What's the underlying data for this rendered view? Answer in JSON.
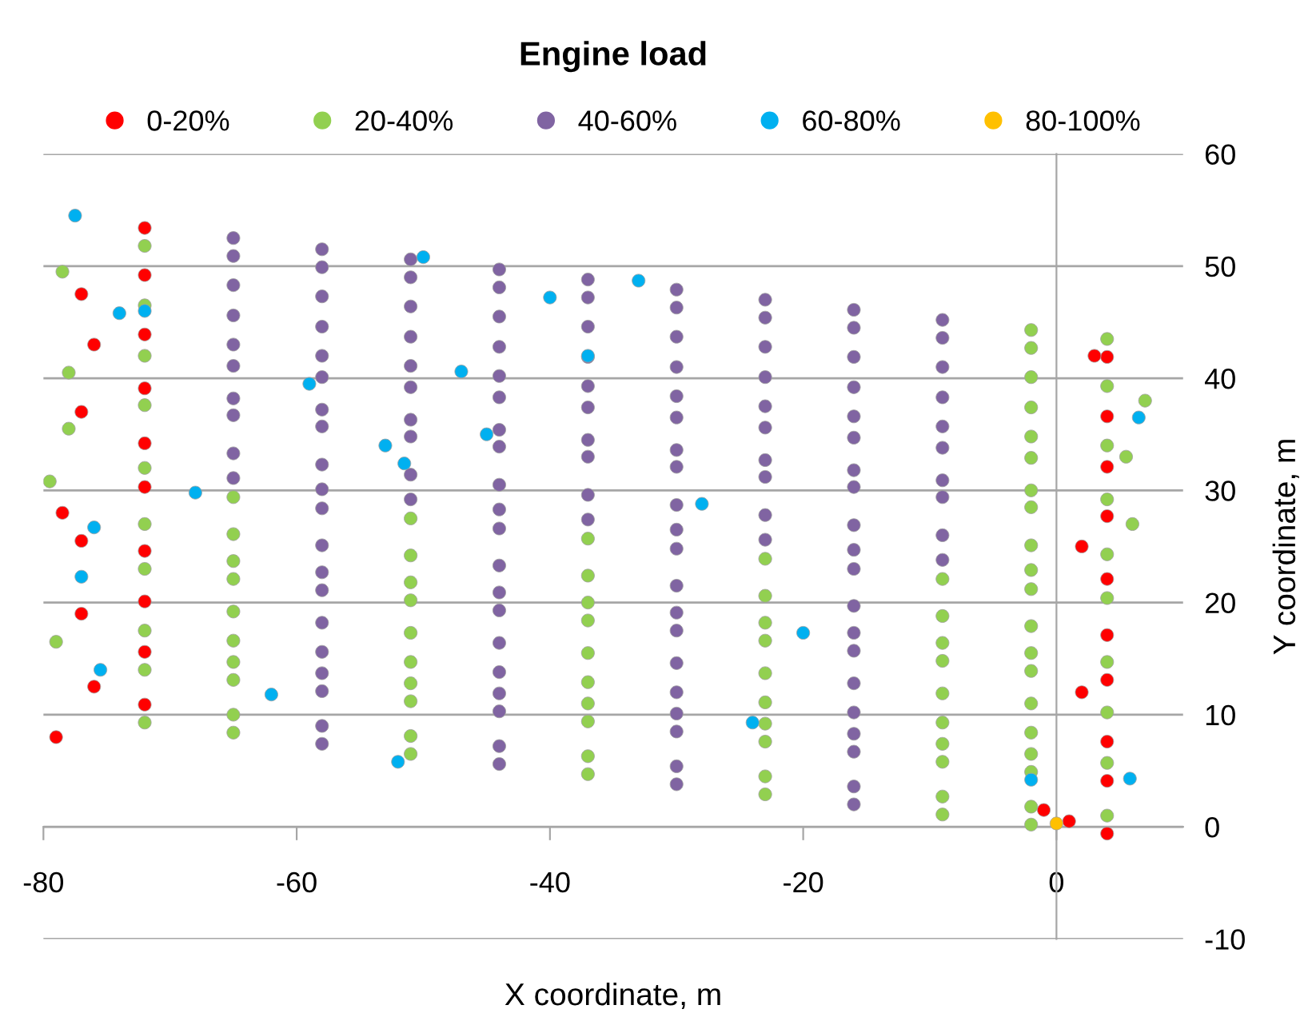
{
  "chart_data": {
    "type": "scatter",
    "title": "Engine load",
    "xlabel": "X coordinate, m",
    "ylabel": "Y coordinate, m",
    "xlim": [
      -80,
      10
    ],
    "ylim": [
      -10,
      60
    ],
    "xticks": [
      -80,
      -60,
      -40,
      -20,
      0
    ],
    "yticks": [
      -10,
      0,
      10,
      20,
      30,
      40,
      50,
      60
    ],
    "grid": "y",
    "legend": "top",
    "marker": "circle",
    "series": [
      {
        "name": "0-20%",
        "color": "#ff0000",
        "x": [
          -72,
          -72,
          -72,
          -72,
          -72,
          -72,
          -72,
          -72,
          -72,
          -72,
          4,
          4,
          4,
          4,
          4,
          4,
          4,
          4,
          4,
          4,
          -77,
          -76,
          -77,
          -78.5,
          -77,
          -77,
          -76,
          -79,
          3,
          2,
          2,
          -1,
          1
        ],
        "values": [
          53.4,
          49.2,
          43.9,
          39.1,
          34.2,
          30.3,
          24.6,
          20.1,
          15.6,
          10.9,
          41.9,
          36.6,
          32.1,
          27.7,
          22.1,
          17.1,
          13.1,
          7.6,
          4.1,
          -0.6,
          47.5,
          43,
          37,
          28,
          25.5,
          19,
          12.5,
          8,
          42,
          25,
          12,
          1.5,
          0.5
        ]
      },
      {
        "name": "20-40%",
        "color": "#92d050",
        "x": [
          -2,
          -2,
          -2,
          -2,
          -2,
          -2,
          -2,
          -2,
          -2,
          -2,
          -65,
          -51,
          -37,
          -23,
          -9,
          -2,
          -65,
          -51,
          -37,
          -23,
          -9,
          -2,
          -65,
          -51,
          -37,
          -23,
          -9,
          -2,
          -65,
          -51,
          -37,
          -23,
          -9,
          -2,
          -65,
          -51,
          -37,
          -23,
          -9,
          -2,
          -65,
          -51,
          -37,
          -23,
          -9,
          -2,
          -65,
          -51,
          -37,
          -23,
          -9,
          -2,
          -65,
          -51,
          -37,
          -23,
          -9,
          -2,
          -65,
          -51,
          -37,
          -23,
          -9,
          -2,
          -65,
          -51,
          -37,
          -23,
          -9,
          -2,
          -72,
          -72,
          -72,
          -72,
          -72,
          -72,
          -72,
          -72,
          -72,
          -72,
          4,
          4,
          4,
          4,
          4,
          4,
          4,
          4,
          4,
          4,
          -79.5,
          -78.5,
          -78,
          -79,
          -78,
          6,
          5.5,
          7
        ],
        "values": [
          44.3,
          42.7,
          40.1,
          37.4,
          34.8,
          32.9,
          30.0,
          28.5,
          25.1,
          22.9,
          29.4,
          27.5,
          25.7,
          23.9,
          22.1,
          21.2,
          26.1,
          24.2,
          22.4,
          20.6,
          18.8,
          17.9,
          23.7,
          21.8,
          20.0,
          18.2,
          16.4,
          15.5,
          22.1,
          20.2,
          18.4,
          16.6,
          14.8,
          13.9,
          19.2,
          17.3,
          15.5,
          13.7,
          11.9,
          11.0,
          16.6,
          14.7,
          12.9,
          11.1,
          9.3,
          8.4,
          14.7,
          12.8,
          11.0,
          9.2,
          7.4,
          6.5,
          13.1,
          11.2,
          9.4,
          7.6,
          5.8,
          4.9,
          10.0,
          8.1,
          6.3,
          4.5,
          2.7,
          1.8,
          8.4,
          6.5,
          4.7,
          2.9,
          1.1,
          0.2,
          51.8,
          46.5,
          42.0,
          37.6,
          32.0,
          27.0,
          23.0,
          17.5,
          14.0,
          9.3,
          43.5,
          39.3,
          34.0,
          29.2,
          24.3,
          20.4,
          14.7,
          10.2,
          5.7,
          1.0,
          30.8,
          49.5,
          35.5,
          16.5,
          40.5,
          27,
          33,
          38
        ]
      },
      {
        "name": "40-60%",
        "color": "#8064a2",
        "x": [
          -65,
          -58,
          -51,
          -44,
          -37,
          -30,
          -23,
          -16,
          -9,
          -65,
          -58,
          -51,
          -44,
          -37,
          -30,
          -23,
          -16,
          -9,
          -65,
          -58,
          -51,
          -44,
          -37,
          -30,
          -23,
          -16,
          -9,
          -65,
          -58,
          -51,
          -44,
          -37,
          -30,
          -23,
          -16,
          -9,
          -65,
          -58,
          -51,
          -44,
          -37,
          -30,
          -23,
          -16,
          -9,
          -65,
          -58,
          -51,
          -44,
          -37,
          -30,
          -23,
          -16,
          -9,
          -65,
          -58,
          -51,
          -44,
          -37,
          -30,
          -23,
          -16,
          -9,
          -65,
          -58,
          -51,
          -44,
          -37,
          -30,
          -23,
          -16,
          -9,
          -65,
          -58,
          -51,
          -44,
          -37,
          -30,
          -23,
          -16,
          -9,
          -65,
          -58,
          -51,
          -44,
          -37,
          -30,
          -23,
          -16,
          -9,
          -58,
          -44,
          -30,
          -16,
          -58,
          -44,
          -30,
          -16,
          -58,
          -44,
          -30,
          -16,
          -58,
          -44,
          -30,
          -16,
          -58,
          -44,
          -30,
          -16,
          -58,
          -44,
          -30,
          -16,
          -58,
          -44,
          -30,
          -16,
          -58,
          -44,
          -30,
          -16,
          -58,
          -44,
          -30,
          -16,
          -58,
          -44,
          -30,
          -16
        ],
        "values": [
          52.5,
          51.5,
          50.6,
          49.7,
          48.8,
          47.9,
          47.0,
          46.1,
          45.2,
          50.9,
          49.9,
          49.0,
          48.1,
          47.2,
          46.3,
          45.4,
          44.5,
          43.6,
          48.3,
          47.3,
          46.4,
          45.5,
          44.6,
          43.7,
          42.8,
          41.9,
          41.0,
          45.6,
          44.6,
          43.7,
          42.8,
          41.9,
          41.0,
          40.1,
          39.2,
          38.3,
          43.0,
          42.0,
          41.1,
          40.2,
          39.3,
          38.4,
          37.5,
          36.6,
          35.7,
          41.1,
          40.1,
          39.2,
          38.3,
          37.4,
          36.5,
          35.6,
          34.7,
          33.8,
          38.2,
          37.2,
          36.3,
          35.4,
          34.5,
          33.6,
          32.7,
          31.8,
          30.9,
          36.7,
          35.7,
          34.8,
          33.9,
          33.0,
          32.1,
          31.2,
          30.3,
          29.4,
          33.3,
          32.3,
          31.4,
          30.5,
          29.6,
          28.7,
          27.8,
          26.9,
          26.0,
          31.1,
          30.1,
          29.2,
          28.3,
          27.4,
          26.5,
          25.6,
          24.7,
          23.8,
          28.4,
          26.6,
          24.8,
          23.0,
          25.1,
          23.3,
          21.5,
          19.7,
          22.7,
          20.9,
          19.1,
          17.3,
          21.1,
          19.3,
          17.5,
          15.7,
          18.2,
          16.4,
          14.6,
          12.8,
          15.6,
          13.8,
          12.0,
          10.2,
          13.7,
          11.9,
          10.1,
          8.3,
          12.1,
          10.3,
          8.5,
          6.7,
          9.0,
          7.2,
          5.4,
          3.6,
          7.4,
          5.6,
          3.8,
          2.0
        ]
      },
      {
        "name": "60-80%",
        "color": "#00b0f0",
        "x": [
          -77.5,
          -50,
          -40,
          -33,
          -72,
          -74,
          -59,
          -37,
          -47,
          -53,
          -51.5,
          -45,
          -28,
          -68,
          -76,
          -77,
          -20,
          -24,
          -62,
          -52,
          -2,
          6.5,
          5.8,
          -75.5
        ],
        "values": [
          54.5,
          50.8,
          47.2,
          48.7,
          46,
          45.8,
          39.5,
          42,
          40.6,
          34,
          32.4,
          35,
          28.8,
          29.8,
          26.7,
          22.3,
          17.3,
          9.3,
          11.8,
          5.8,
          4.2,
          36.5,
          4.3,
          14
        ]
      },
      {
        "name": "80-100%",
        "color": "#ffc000",
        "x": [
          0
        ],
        "values": [
          0.3
        ]
      }
    ]
  }
}
